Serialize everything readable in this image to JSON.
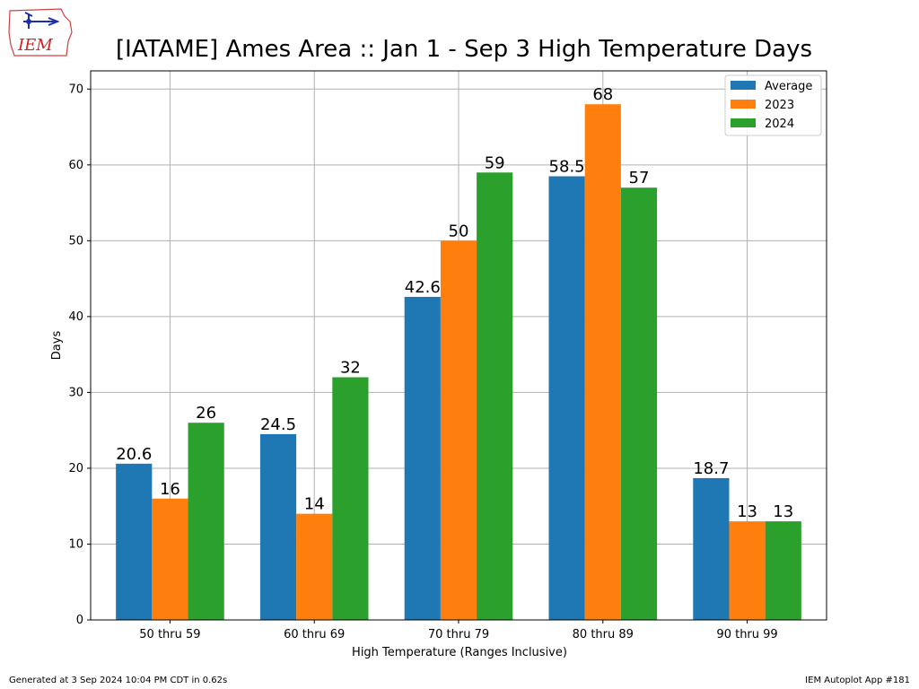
{
  "title": "[IATAME] Ames Area :: Jan 1 - Sep 3 High Temperature Days",
  "logo_text": "IEM",
  "footer": {
    "left": "Generated at 3 Sep 2024 10:04 PM CDT in 0.62s",
    "right": "IEM Autoplot App #181"
  },
  "colors": {
    "average": "#1f77b4",
    "y2023": "#ff7f0e",
    "y2024": "#2ca02c",
    "grid": "#b0b0b0"
  },
  "chart_data": {
    "type": "bar",
    "title": "[IATAME] Ames Area :: Jan 1 - Sep 3 High Temperature Days",
    "xlabel": "High Temperature (Ranges Inclusive)",
    "ylabel": "Days",
    "ylim": [
      0,
      72.4
    ],
    "yticks": [
      0,
      10,
      20,
      30,
      40,
      50,
      60,
      70
    ],
    "grid": true,
    "legend_position": "top-right",
    "categories": [
      "50 thru 59",
      "60 thru 69",
      "70 thru 79",
      "80 thru 89",
      "90 thru 99"
    ],
    "series": [
      {
        "name": "Average",
        "color": "#1f77b4",
        "values": [
          20.6,
          24.5,
          42.6,
          58.5,
          18.7
        ],
        "labels": [
          "20.6",
          "24.5",
          "42.6",
          "58.5",
          "18.7"
        ]
      },
      {
        "name": "2023",
        "color": "#ff7f0e",
        "values": [
          16,
          14,
          50,
          68,
          13
        ],
        "labels": [
          "16",
          "14",
          "50",
          "68",
          "13"
        ]
      },
      {
        "name": "2024",
        "color": "#2ca02c",
        "values": [
          26,
          32,
          59,
          57,
          13
        ],
        "labels": [
          "26",
          "32",
          "59",
          "57",
          "13"
        ]
      }
    ]
  }
}
